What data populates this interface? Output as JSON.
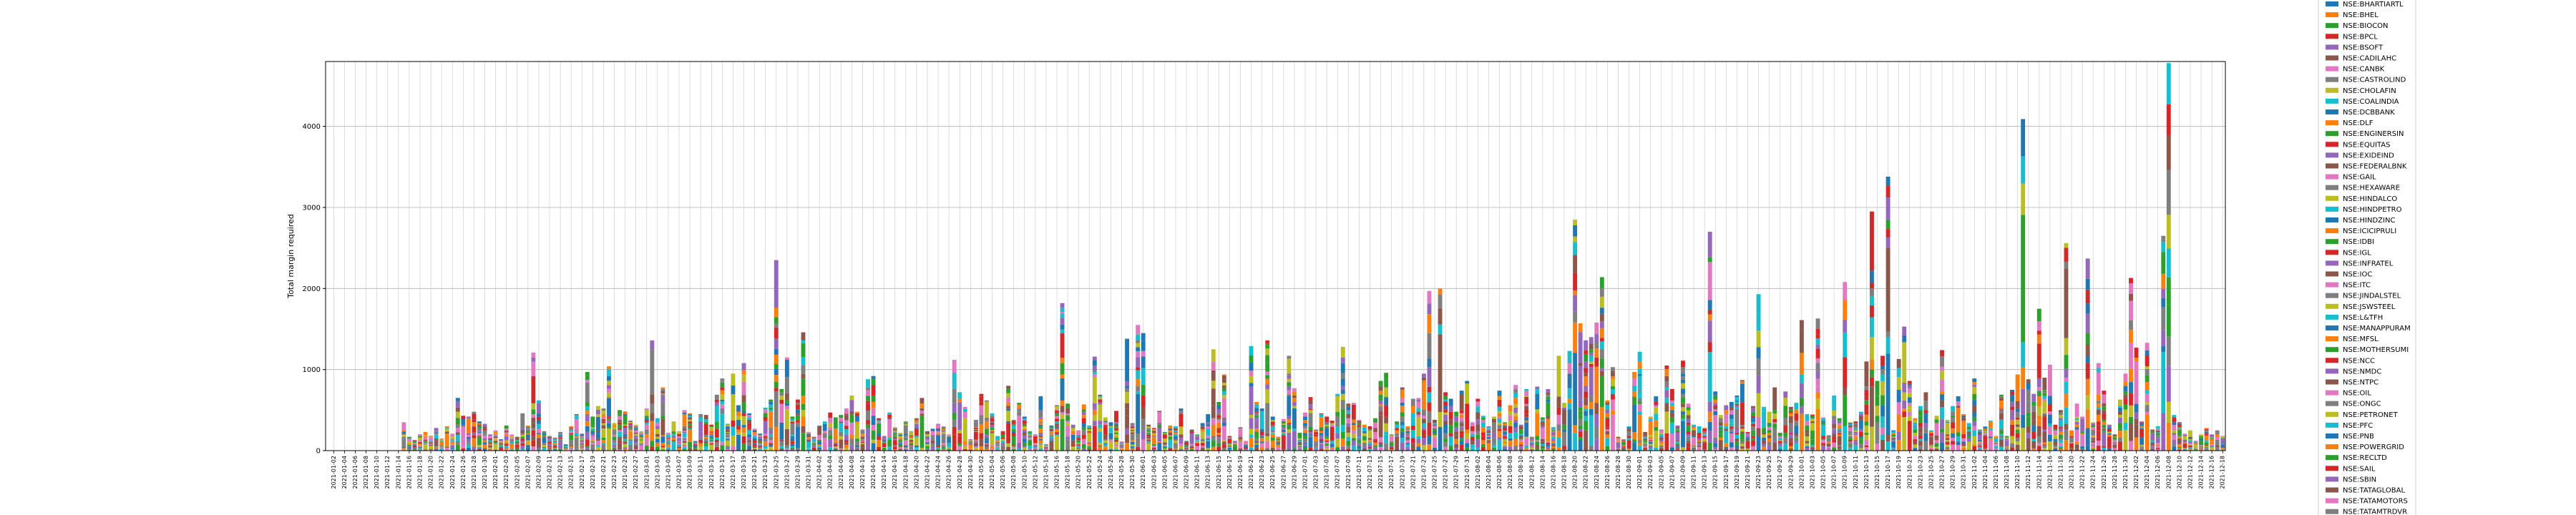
{
  "chart_data": {
    "type": "bar",
    "stacked": true,
    "title": "",
    "xlabel": "",
    "ylabel": "Total margin required",
    "ylim": [
      0,
      4800
    ],
    "yticks": [
      0,
      1000,
      2000,
      3000,
      4000
    ],
    "grid": true,
    "legend_position": "right",
    "x_start_date": "2021-01-01",
    "x_step_days": 1,
    "totals": [
      0,
      0,
      0,
      0,
      0,
      0,
      0,
      0,
      0,
      0,
      0,
      0,
      0,
      0,
      350,
      170,
      130,
      200,
      230,
      180,
      280,
      150,
      300,
      210,
      650,
      430,
      420,
      480,
      360,
      330,
      200,
      250,
      140,
      310,
      200,
      170,
      460,
      310,
      1210,
      620,
      240,
      180,
      160,
      230,
      80,
      300,
      450,
      210,
      970,
      420,
      550,
      520,
      1040,
      340,
      500,
      480,
      370,
      320,
      240,
      520,
      1360,
      400,
      780,
      220,
      360,
      240,
      500,
      460,
      120,
      450,
      440,
      320,
      690,
      890,
      330,
      950,
      560,
      1080,
      460,
      270,
      210,
      530,
      630,
      2350,
      760,
      1150,
      420,
      630,
      1460,
      230,
      170,
      310,
      360,
      470,
      410,
      440,
      520,
      680,
      480,
      260,
      880,
      920,
      400,
      180,
      470,
      290,
      220,
      360,
      240,
      400,
      650,
      240,
      270,
      330,
      300,
      200,
      1120,
      720,
      540,
      140,
      380,
      700,
      620,
      460,
      180,
      240,
      800,
      380,
      590,
      420,
      240,
      200,
      670,
      80,
      310,
      560,
      1820,
      580,
      320,
      250,
      570,
      310,
      1160,
      690,
      410,
      350,
      490,
      110,
      1380,
      340,
      1550,
      1450,
      320,
      280,
      490,
      230,
      310,
      300,
      520,
      120,
      260,
      200,
      340,
      450,
      1250,
      600,
      940,
      180,
      120,
      290,
      120,
      1290,
      600,
      520,
      1360,
      420,
      170,
      390,
      1170,
      770,
      220,
      470,
      660,
      260,
      460,
      420,
      370,
      700,
      1280,
      580,
      590,
      380,
      320,
      300,
      400,
      860,
      960,
      200,
      360,
      780,
      300,
      640,
      650,
      950,
      1970,
      380,
      2000,
      720,
      640,
      480,
      740,
      860,
      350,
      640,
      430,
      300,
      420,
      740,
      350,
      560,
      810,
      320,
      760,
      170,
      790,
      410,
      760,
      290,
      1170,
      590,
      1230,
      2850,
      1570,
      1360,
      1400,
      1580,
      2140,
      620,
      1030,
      170,
      140,
      300,
      970,
      1220,
      230,
      420,
      670,
      260,
      1050,
      760,
      310,
      1110,
      580,
      320,
      300,
      280,
      2700,
      730,
      440,
      560,
      600,
      680,
      870,
      230,
      550,
      1930,
      540,
      480,
      780,
      220,
      730,
      540,
      590,
      1610,
      450,
      450,
      1630,
      410,
      190,
      680,
      400,
      2080,
      350,
      360,
      480,
      1100,
      2950,
      860,
      1170,
      3380,
      250,
      1130,
      1530,
      860,
      400,
      550,
      720,
      250,
      430,
      1240,
      380,
      550,
      670,
      450,
      340,
      890,
      260,
      300,
      370,
      180,
      690,
      180,
      750,
      940,
      4090,
      880,
      700,
      1750,
      900,
      1060,
      320,
      500,
      2560,
      250,
      580,
      420,
      2370,
      350,
      1080,
      740,
      320,
      200,
      630,
      950,
      2130,
      1270,
      360,
      1330,
      260,
      300,
      2650,
      4780,
      440,
      350,
      210,
      250,
      120,
      200,
      280,
      200,
      250,
      180
    ],
    "x_labels": [
      "2021-01-02",
      "2021-01-04",
      "2021-01-06",
      "2021-01-08",
      "2021-01-10",
      "2021-01-12",
      "2021-01-14",
      "2021-01-16",
      "2021-01-18",
      "2021-01-20",
      "2021-01-22",
      "2021-01-24",
      "2021-01-26",
      "2021-01-28",
      "2021-01-30",
      "2021-02-01",
      "2021-02-03",
      "2021-02-05",
      "2021-02-07",
      "2021-02-09",
      "2021-02-11",
      "2021-02-13",
      "2021-02-15",
      "2021-02-17",
      "2021-02-19",
      "2021-02-21",
      "2021-02-23",
      "2021-02-25",
      "2021-02-27",
      "2021-03-01",
      "2021-03-03",
      "2021-03-05",
      "2021-03-07",
      "2021-03-09",
      "2021-03-11",
      "2021-03-13",
      "2021-03-15",
      "2021-03-17",
      "2021-03-19",
      "2021-03-21",
      "2021-03-23",
      "2021-03-25",
      "2021-03-27",
      "2021-03-29",
      "2021-03-31",
      "2021-04-02",
      "2021-04-04",
      "2021-04-06",
      "2021-04-08",
      "2021-04-10",
      "2021-04-12",
      "2021-04-14",
      "2021-04-16",
      "2021-04-18",
      "2021-04-20",
      "2021-04-22",
      "2021-04-24",
      "2021-04-26",
      "2021-04-28",
      "2021-04-30",
      "2021-05-02",
      "2021-05-04",
      "2021-05-06",
      "2021-05-08",
      "2021-05-10",
      "2021-05-12",
      "2021-05-14",
      "2021-05-16",
      "2021-05-18",
      "2021-05-20",
      "2021-05-22",
      "2021-05-24",
      "2021-05-26",
      "2021-05-28",
      "2021-05-30",
      "2021-06-01",
      "2021-06-03",
      "2021-06-05",
      "2021-06-07",
      "2021-06-09",
      "2021-06-11",
      "2021-06-13",
      "2021-06-15",
      "2021-06-17",
      "2021-06-19",
      "2021-06-21",
      "2021-06-23",
      "2021-06-25",
      "2021-06-27",
      "2021-06-29",
      "2021-07-01",
      "2021-07-03",
      "2021-07-05",
      "2021-07-07",
      "2021-07-09",
      "2021-07-11",
      "2021-07-13",
      "2021-07-15",
      "2021-07-17",
      "2021-07-19",
      "2021-07-21",
      "2021-07-23",
      "2021-07-25",
      "2021-07-27",
      "2021-07-29",
      "2021-07-31",
      "2021-08-02",
      "2021-08-04",
      "2021-08-06",
      "2021-08-08",
      "2021-08-10",
      "2021-08-12",
      "2021-08-14",
      "2021-08-16",
      "2021-08-18",
      "2021-08-20",
      "2021-08-22",
      "2021-08-24",
      "2021-08-26",
      "2021-08-28",
      "2021-08-30",
      "2021-09-01",
      "2021-09-03",
      "2021-09-05",
      "2021-09-07",
      "2021-09-09",
      "2021-09-11",
      "2021-09-13",
      "2021-09-15",
      "2021-09-17",
      "2021-09-19",
      "2021-09-21",
      "2021-09-23",
      "2021-09-25",
      "2021-09-27",
      "2021-09-29",
      "2021-10-01",
      "2021-10-03",
      "2021-10-05",
      "2021-10-07",
      "2021-10-09",
      "2021-10-11",
      "2021-10-13",
      "2021-10-15",
      "2021-10-17",
      "2021-10-19",
      "2021-10-21",
      "2021-10-23",
      "2021-10-25",
      "2021-10-27",
      "2021-10-29",
      "2021-10-31",
      "2021-11-02",
      "2021-11-04",
      "2021-11-06",
      "2021-11-08",
      "2021-11-10",
      "2021-11-12",
      "2021-11-14",
      "2021-11-16",
      "2021-11-18",
      "2021-11-20",
      "2021-11-22",
      "2021-11-24",
      "2021-11-26",
      "2021-11-28",
      "2021-11-30",
      "2021-12-02",
      "2021-12-04",
      "2021-12-06",
      "2021-12-08",
      "2021-12-10",
      "2021-12-12",
      "2021-12-14",
      "2021-12-16",
      "2021-12-18",
      "2021-12-20",
      "2021-12-22",
      "2021-12-24",
      "2021-12-26",
      "2021-12-28",
      "2021-12-30"
    ],
    "legend": [
      "NSE:BHARTIARTL",
      "NSE:BHEL",
      "NSE:BIOCON",
      "NSE:BPCL",
      "NSE:BSOFT",
      "NSE:CADILAHC",
      "NSE:CANBK",
      "NSE:CASTROLIND",
      "NSE:CHOLAFIN",
      "NSE:COALINDIA",
      "NSE:DCBBANK",
      "NSE:DLF",
      "NSE:ENGINERSIN",
      "NSE:EQUITAS",
      "NSE:EXIDEIND",
      "NSE:FEDERALBNK",
      "NSE:GAIL",
      "NSE:HEXAWARE",
      "NSE:HINDALCO",
      "NSE:HINDPETRO",
      "NSE:HINDZINC",
      "NSE:ICICIPRULI",
      "NSE:IDBI",
      "NSE:IGL",
      "NSE:INFRATEL",
      "NSE:IOC",
      "NSE:ITC",
      "NSE:JINDALSTEL",
      "NSE:JSWSTEEL",
      "NSE:L&TFH",
      "NSE:MANAPPURAM",
      "NSE:MFSL",
      "NSE:MOTHERSUMI",
      "NSE:NCC",
      "NSE:NMDC",
      "NSE:NTPC",
      "NSE:OIL",
      "NSE:ONGC",
      "NSE:PETRONET",
      "NSE:PFC",
      "NSE:PNB",
      "NSE:POWERGRID",
      "NSE:RECLTD",
      "NSE:SAIL",
      "NSE:SBIN",
      "NSE:TATAGLOBAL",
      "NSE:TATAMOTORS",
      "NSE:TATAMTRDVR"
    ],
    "colors": [
      "#1f77b4",
      "#ff7f0e",
      "#2ca02c",
      "#d62728",
      "#9467bd",
      "#8c564b",
      "#e377c2",
      "#7f7f7f",
      "#bcbd22",
      "#17becf"
    ]
  }
}
